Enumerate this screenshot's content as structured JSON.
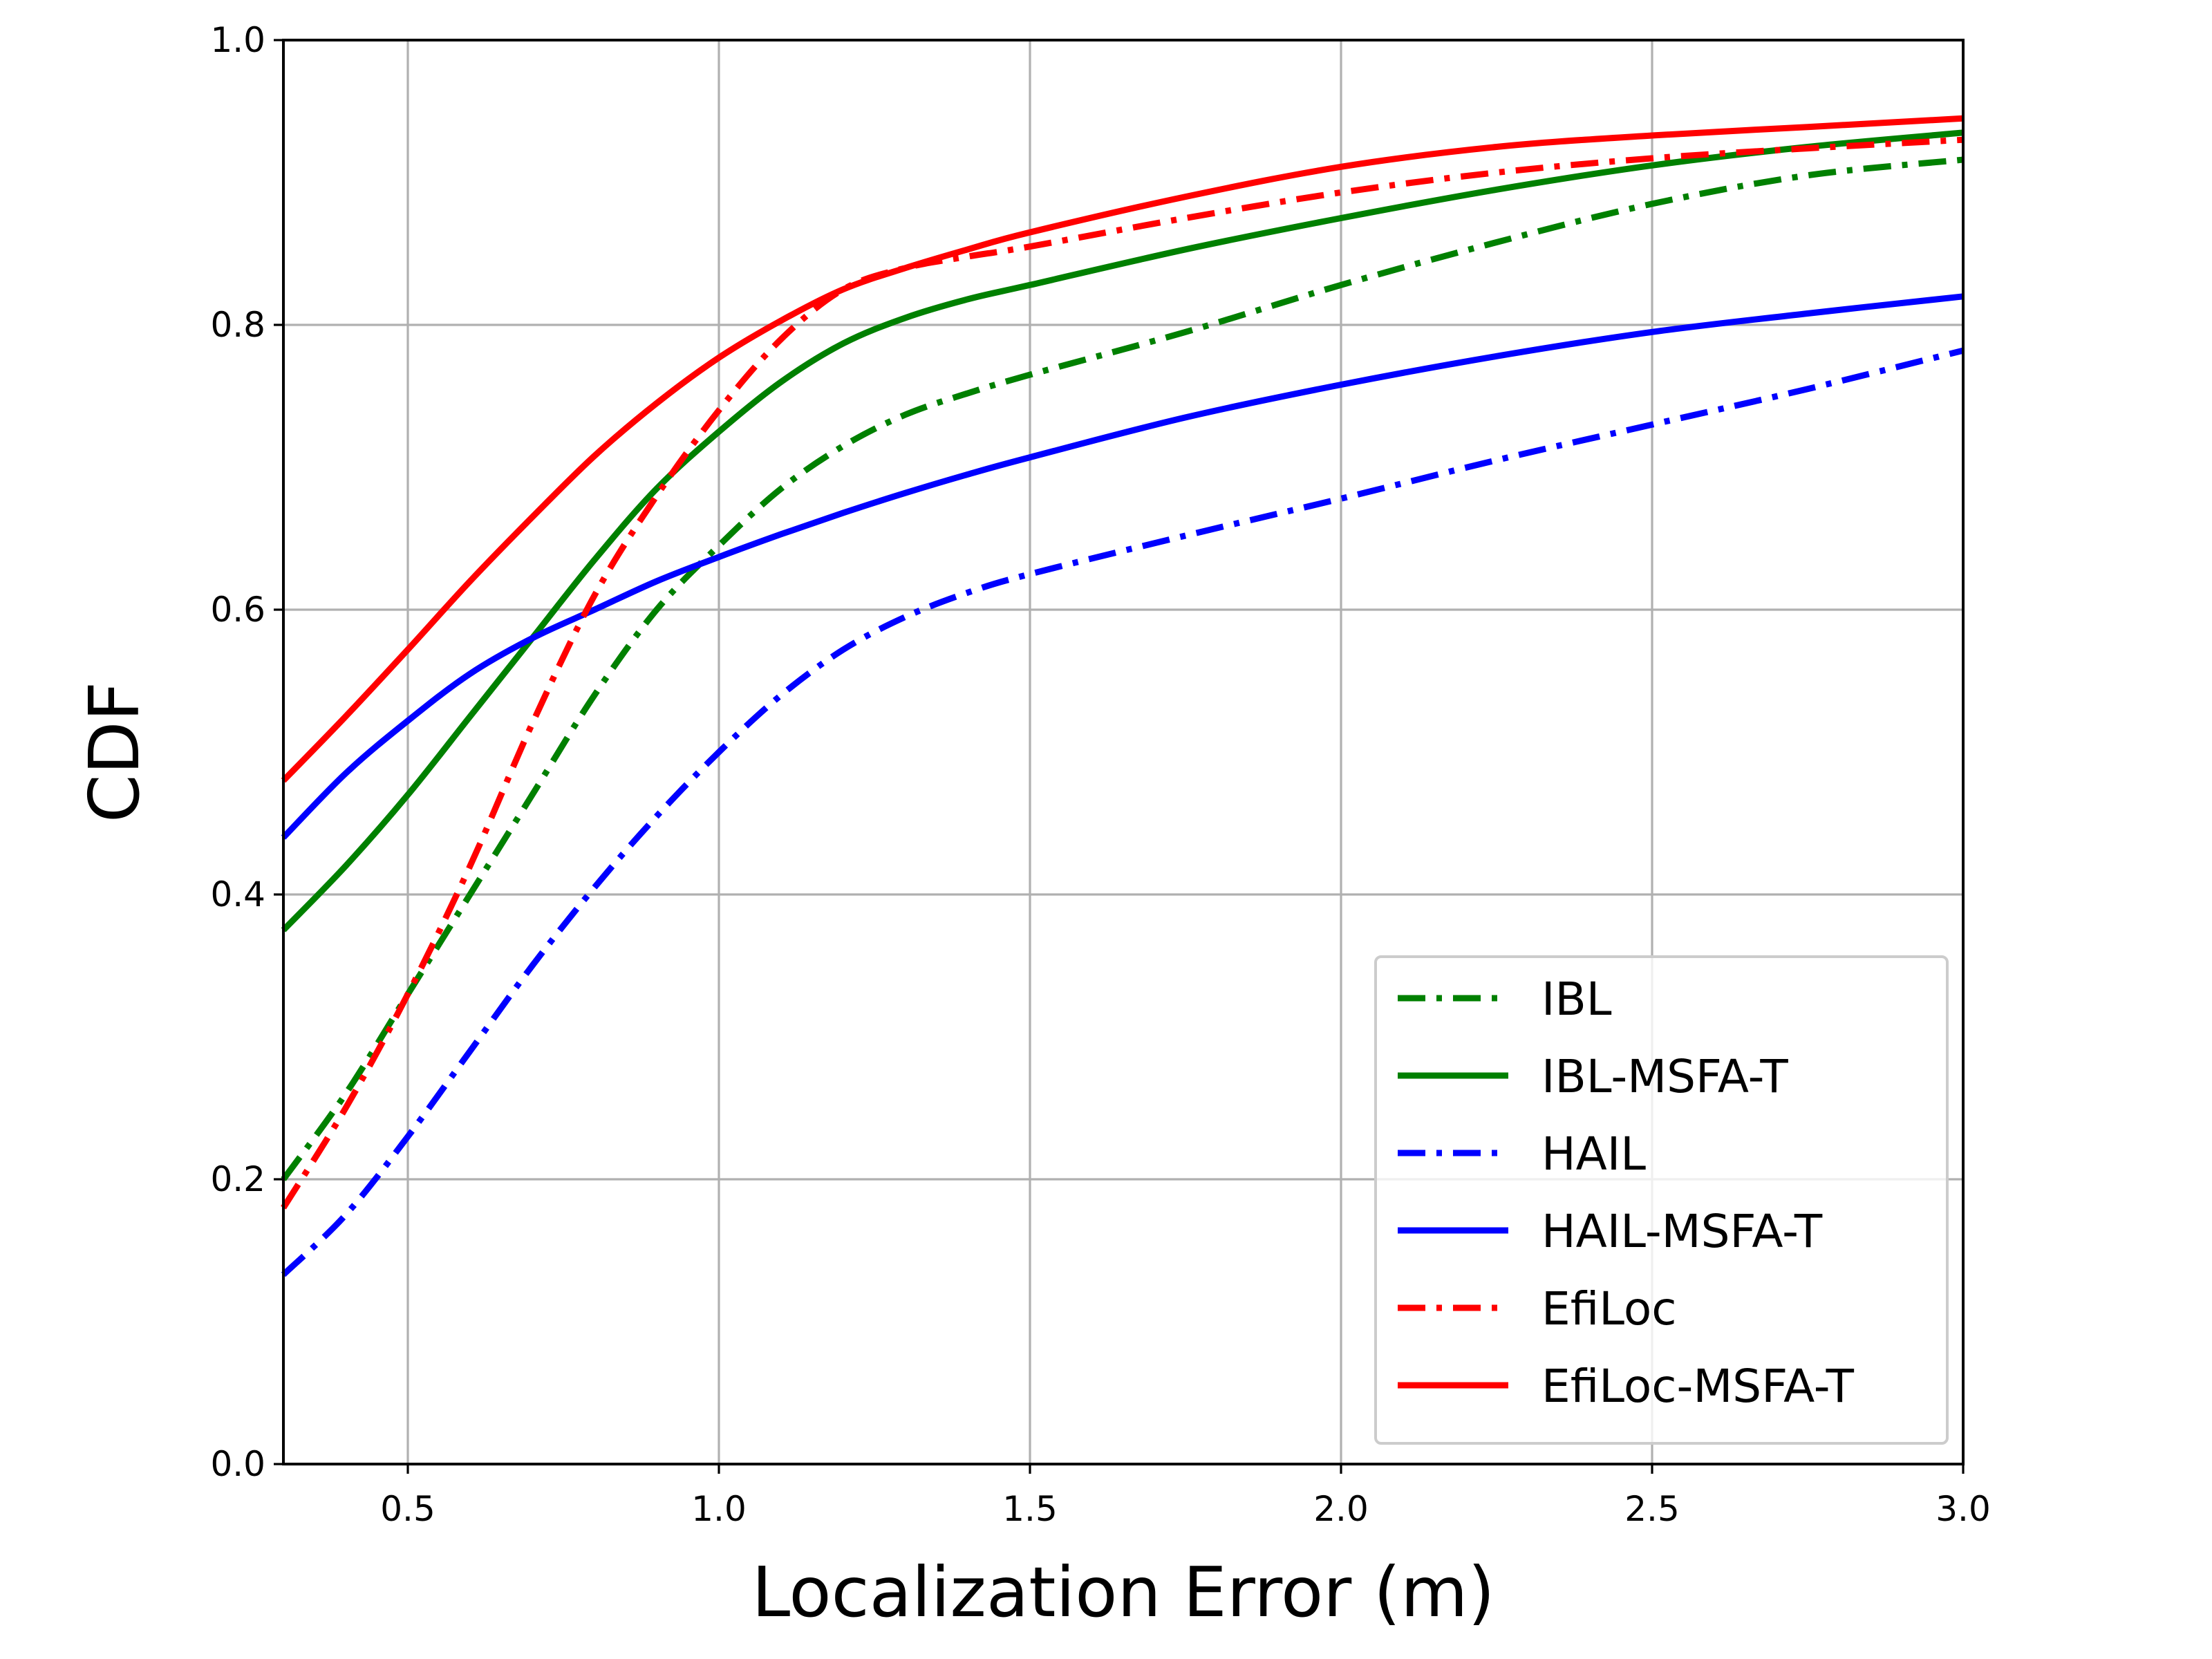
{
  "chart_data": {
    "type": "line",
    "title": "",
    "xlabel": "Localization Error (m)",
    "ylabel": "CDF",
    "xlim": [
      0.3,
      3.0
    ],
    "ylim": [
      0.0,
      1.0
    ],
    "xticks": [
      "0.5",
      "1.0",
      "1.5",
      "2.0",
      "2.5",
      "3.0"
    ],
    "yticks": [
      "0.0",
      "0.2",
      "0.4",
      "0.6",
      "0.8",
      "1.0"
    ],
    "grid": true,
    "legend_position": "bottom-right",
    "series": [
      {
        "name": "IBL",
        "color": "#008000",
        "style": "dashdot",
        "x": [
          0.3,
          0.4,
          0.5,
          0.6,
          0.7,
          0.8,
          0.9,
          1.0,
          1.1,
          1.2,
          1.3,
          1.4,
          1.5,
          1.75,
          2.0,
          2.25,
          2.5,
          2.75,
          3.0
        ],
        "y": [
          0.2,
          0.26,
          0.33,
          0.4,
          0.47,
          0.54,
          0.6,
          0.645,
          0.685,
          0.715,
          0.737,
          0.752,
          0.765,
          0.795,
          0.828,
          0.858,
          0.885,
          0.905,
          0.916
        ]
      },
      {
        "name": "IBL-MSFA-T",
        "color": "#008000",
        "style": "solid",
        "x": [
          0.3,
          0.4,
          0.5,
          0.6,
          0.7,
          0.8,
          0.9,
          1.0,
          1.1,
          1.2,
          1.3,
          1.4,
          1.5,
          1.75,
          2.0,
          2.25,
          2.5,
          2.75,
          3.0
        ],
        "y": [
          0.375,
          0.42,
          0.47,
          0.525,
          0.58,
          0.635,
          0.685,
          0.725,
          0.76,
          0.787,
          0.805,
          0.818,
          0.828,
          0.853,
          0.875,
          0.895,
          0.912,
          0.925,
          0.935
        ]
      },
      {
        "name": "HAIL",
        "color": "#0000ff",
        "style": "dashdot",
        "x": [
          0.3,
          0.4,
          0.5,
          0.6,
          0.7,
          0.8,
          0.9,
          1.0,
          1.1,
          1.2,
          1.3,
          1.4,
          1.5,
          1.75,
          2.0,
          2.25,
          2.5,
          2.75,
          3.0
        ],
        "y": [
          0.133,
          0.175,
          0.23,
          0.29,
          0.35,
          0.405,
          0.455,
          0.5,
          0.54,
          0.572,
          0.595,
          0.612,
          0.625,
          0.652,
          0.678,
          0.705,
          0.73,
          0.755,
          0.782
        ]
      },
      {
        "name": "HAIL-MSFA-T",
        "color": "#0000ff",
        "style": "solid",
        "x": [
          0.3,
          0.4,
          0.5,
          0.6,
          0.7,
          0.8,
          0.9,
          1.0,
          1.1,
          1.2,
          1.3,
          1.4,
          1.5,
          1.75,
          2.0,
          2.25,
          2.5,
          2.75,
          3.0
        ],
        "y": [
          0.44,
          0.485,
          0.522,
          0.555,
          0.58,
          0.6,
          0.62,
          0.637,
          0.653,
          0.668,
          0.682,
          0.695,
          0.707,
          0.735,
          0.758,
          0.778,
          0.795,
          0.808,
          0.82
        ]
      },
      {
        "name": "EfiLoc",
        "color": "#ff0000",
        "style": "dashdot",
        "x": [
          0.3,
          0.4,
          0.5,
          0.6,
          0.7,
          0.8,
          0.9,
          1.0,
          1.1,
          1.2,
          1.3,
          1.4,
          1.5,
          1.75,
          2.0,
          2.25,
          2.5,
          2.75,
          3.0
        ],
        "y": [
          0.18,
          0.25,
          0.33,
          0.42,
          0.52,
          0.61,
          0.68,
          0.74,
          0.79,
          0.825,
          0.84,
          0.848,
          0.855,
          0.875,
          0.893,
          0.907,
          0.917,
          0.924,
          0.93
        ]
      },
      {
        "name": "EfiLoc-MSFA-T",
        "color": "#ff0000",
        "style": "solid",
        "x": [
          0.3,
          0.4,
          0.5,
          0.6,
          0.7,
          0.8,
          0.9,
          1.0,
          1.1,
          1.2,
          1.3,
          1.4,
          1.5,
          1.75,
          2.0,
          2.25,
          2.5,
          2.75,
          3.0
        ],
        "y": [
          0.48,
          0.525,
          0.572,
          0.62,
          0.665,
          0.708,
          0.745,
          0.777,
          0.803,
          0.825,
          0.84,
          0.853,
          0.865,
          0.89,
          0.911,
          0.925,
          0.933,
          0.939,
          0.945
        ]
      }
    ]
  }
}
